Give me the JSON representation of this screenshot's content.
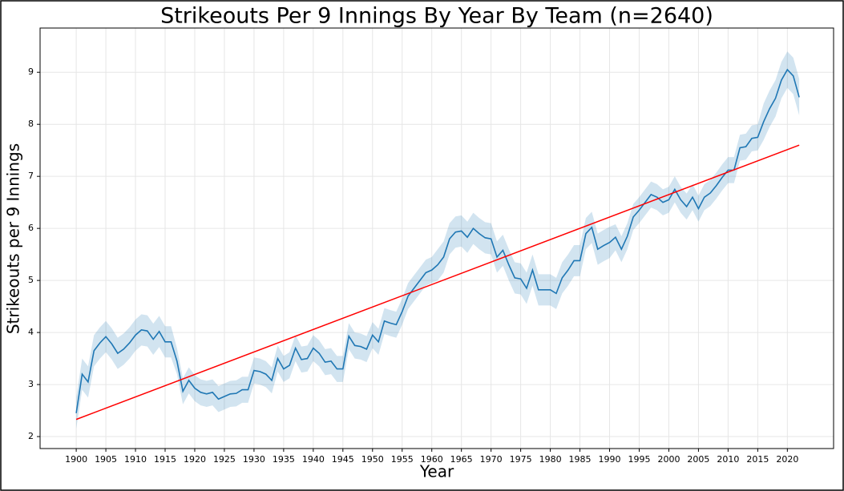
{
  "chart_data": {
    "type": "line",
    "title": "Strikeouts Per 9 Innings By Year By Team (n=2640)",
    "x_label": "Year",
    "y_label": "Strikeouts per 9 Innings",
    "color": "#1f77b4",
    "band_color": "#1f77b4",
    "grid": true,
    "x": [
      1900,
      1901,
      1902,
      1903,
      1904,
      1905,
      1906,
      1907,
      1908,
      1909,
      1910,
      1911,
      1912,
      1913,
      1914,
      1915,
      1916,
      1917,
      1918,
      1919,
      1920,
      1921,
      1922,
      1923,
      1924,
      1925,
      1926,
      1927,
      1928,
      1929,
      1930,
      1931,
      1932,
      1933,
      1934,
      1935,
      1936,
      1937,
      1938,
      1939,
      1940,
      1941,
      1942,
      1943,
      1944,
      1945,
      1946,
      1947,
      1948,
      1949,
      1950,
      1951,
      1952,
      1953,
      1954,
      1955,
      1956,
      1957,
      1958,
      1959,
      1960,
      1961,
      1962,
      1963,
      1964,
      1965,
      1966,
      1967,
      1968,
      1969,
      1970,
      1971,
      1972,
      1973,
      1974,
      1975,
      1976,
      1977,
      1978,
      1979,
      1980,
      1981,
      1982,
      1983,
      1984,
      1985,
      1986,
      1987,
      1988,
      1989,
      1990,
      1991,
      1992,
      1993,
      1994,
      1995,
      1996,
      1997,
      1998,
      1999,
      2000,
      2001,
      2002,
      2003,
      2004,
      2005,
      2006,
      2007,
      2008,
      2009,
      2010,
      2011,
      2012,
      2013,
      2014,
      2015,
      2016,
      2017,
      2018,
      2019,
      2020,
      2021,
      2022
    ],
    "values": [
      2.45,
      3.2,
      3.05,
      3.65,
      3.8,
      3.92,
      3.78,
      3.6,
      3.68,
      3.8,
      3.95,
      4.05,
      4.03,
      3.87,
      4.02,
      3.82,
      3.82,
      3.45,
      2.87,
      3.08,
      2.93,
      2.85,
      2.82,
      2.85,
      2.72,
      2.77,
      2.82,
      2.83,
      2.9,
      2.9,
      3.27,
      3.25,
      3.2,
      3.08,
      3.5,
      3.3,
      3.37,
      3.7,
      3.48,
      3.5,
      3.7,
      3.6,
      3.43,
      3.45,
      3.3,
      3.3,
      3.93,
      3.75,
      3.73,
      3.68,
      3.95,
      3.82,
      4.22,
      4.18,
      4.15,
      4.4,
      4.7,
      4.85,
      5.0,
      5.15,
      5.2,
      5.3,
      5.45,
      5.8,
      5.93,
      5.95,
      5.83,
      6.0,
      5.9,
      5.82,
      5.8,
      5.45,
      5.58,
      5.3,
      5.05,
      5.03,
      4.85,
      5.2,
      4.82,
      4.82,
      4.82,
      4.75,
      5.05,
      5.2,
      5.38,
      5.38,
      5.9,
      6.02,
      5.6,
      5.67,
      5.73,
      5.83,
      5.6,
      5.85,
      6.22,
      6.35,
      6.5,
      6.65,
      6.6,
      6.5,
      6.55,
      6.75,
      6.55,
      6.42,
      6.6,
      6.38,
      6.6,
      6.68,
      6.82,
      6.98,
      7.12,
      7.12,
      7.55,
      7.57,
      7.73,
      7.75,
      8.05,
      8.3,
      8.5,
      8.85,
      9.05,
      8.93,
      8.52
    ],
    "lower": [
      2.15,
      2.9,
      2.75,
      3.35,
      3.5,
      3.62,
      3.48,
      3.3,
      3.38,
      3.5,
      3.65,
      3.75,
      3.73,
      3.57,
      3.72,
      3.52,
      3.52,
      3.2,
      2.62,
      2.83,
      2.68,
      2.6,
      2.57,
      2.6,
      2.47,
      2.52,
      2.57,
      2.58,
      2.65,
      2.65,
      3.02,
      3.0,
      2.95,
      2.83,
      3.25,
      3.05,
      3.12,
      3.45,
      3.23,
      3.25,
      3.45,
      3.35,
      3.18,
      3.2,
      3.05,
      3.05,
      3.68,
      3.5,
      3.48,
      3.43,
      3.7,
      3.57,
      3.97,
      3.93,
      3.9,
      4.15,
      4.45,
      4.6,
      4.75,
      4.9,
      4.95,
      5.0,
      5.15,
      5.5,
      5.63,
      5.65,
      5.53,
      5.7,
      5.6,
      5.52,
      5.5,
      5.15,
      5.28,
      5.0,
      4.75,
      4.73,
      4.55,
      4.9,
      4.52,
      4.52,
      4.52,
      4.45,
      4.75,
      4.9,
      5.08,
      5.08,
      5.6,
      5.72,
      5.3,
      5.37,
      5.43,
      5.58,
      5.35,
      5.6,
      5.97,
      6.1,
      6.25,
      6.4,
      6.35,
      6.25,
      6.3,
      6.5,
      6.3,
      6.17,
      6.35,
      6.13,
      6.35,
      6.43,
      6.57,
      6.73,
      6.87,
      6.87,
      7.3,
      7.32,
      7.48,
      7.5,
      7.7,
      7.95,
      8.15,
      8.5,
      8.7,
      8.58,
      8.17
    ],
    "upper": [
      2.75,
      3.5,
      3.35,
      3.95,
      4.1,
      4.22,
      4.08,
      3.9,
      3.98,
      4.1,
      4.25,
      4.35,
      4.33,
      4.17,
      4.32,
      4.12,
      4.12,
      3.7,
      3.12,
      3.33,
      3.18,
      3.1,
      3.07,
      3.1,
      2.97,
      3.02,
      3.07,
      3.08,
      3.15,
      3.15,
      3.52,
      3.5,
      3.45,
      3.33,
      3.75,
      3.55,
      3.62,
      3.95,
      3.73,
      3.75,
      3.95,
      3.85,
      3.68,
      3.7,
      3.55,
      3.55,
      4.18,
      4.0,
      3.98,
      3.93,
      4.2,
      4.07,
      4.47,
      4.43,
      4.4,
      4.65,
      4.95,
      5.1,
      5.25,
      5.4,
      5.45,
      5.6,
      5.75,
      6.1,
      6.23,
      6.25,
      6.13,
      6.3,
      6.2,
      6.12,
      6.1,
      5.75,
      5.88,
      5.6,
      5.35,
      5.33,
      5.15,
      5.5,
      5.12,
      5.12,
      5.12,
      5.05,
      5.35,
      5.5,
      5.68,
      5.68,
      6.2,
      6.32,
      5.9,
      5.97,
      6.03,
      6.08,
      5.85,
      6.1,
      6.47,
      6.6,
      6.75,
      6.9,
      6.85,
      6.75,
      6.8,
      7.0,
      6.8,
      6.67,
      6.85,
      6.63,
      6.85,
      6.93,
      7.07,
      7.23,
      7.37,
      7.37,
      7.8,
      7.82,
      7.98,
      8.0,
      8.4,
      8.65,
      8.85,
      9.2,
      9.4,
      9.28,
      8.87
    ],
    "trend": {
      "color": "#ff0000",
      "x": [
        1900,
        2022
      ],
      "values": [
        2.33,
        7.6
      ]
    },
    "xlim": [
      1893.9,
      2027.8
    ],
    "ylim": [
      1.77,
      9.85
    ],
    "xticks": [
      1900,
      1905,
      1910,
      1915,
      1920,
      1925,
      1930,
      1935,
      1940,
      1945,
      1950,
      1955,
      1960,
      1965,
      1970,
      1975,
      1980,
      1985,
      1990,
      1995,
      2000,
      2005,
      2010,
      2015,
      2020
    ],
    "yticks": [
      2,
      3,
      4,
      5,
      6,
      7,
      8,
      9
    ]
  }
}
